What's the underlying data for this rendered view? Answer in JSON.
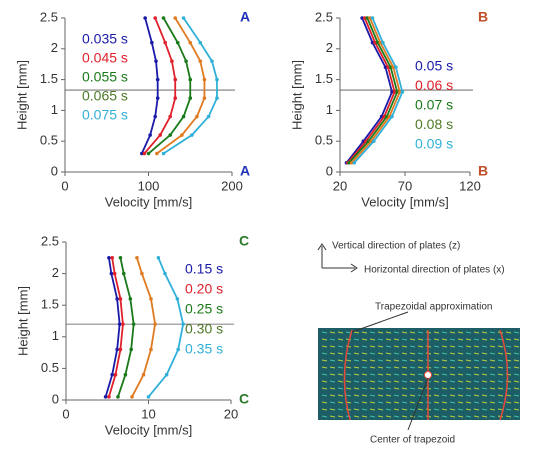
{
  "chart_data": [
    {
      "type": "line",
      "x_label": "Velocity [mm/s]",
      "y_label": "Height [mm]",
      "corner_label": "A",
      "corner_color": "#2233bb",
      "xlim": [
        0,
        200
      ],
      "xticks": [
        0,
        100,
        200
      ],
      "ylim": [
        0,
        2.5
      ],
      "yticks": [
        0,
        0.5,
        1,
        1.5,
        2,
        2.5
      ],
      "hline": 1.33,
      "series": [
        {
          "name": "0.035 s",
          "color": "#1a1aa8",
          "label_color": "#1a1aa8",
          "values": [
            0.3,
            0.6,
            0.9,
            1.2,
            1.5,
            1.8,
            2.1,
            2.5
          ],
          "x": [
            92,
            102,
            108,
            111,
            111,
            109,
            104,
            96
          ]
        },
        {
          "name": "0.045 s",
          "color": "#e0202a",
          "label_color": "#e0202a",
          "values": [
            0.3,
            0.6,
            0.9,
            1.2,
            1.5,
            1.8,
            2.1,
            2.5
          ],
          "x": [
            95,
            114,
            126,
            132,
            132,
            128,
            120,
            108
          ]
        },
        {
          "name": "0.055 s",
          "color": "#1a7a1a",
          "label_color": "#1a7a1a",
          "values": [
            0.3,
            0.6,
            0.9,
            1.2,
            1.5,
            1.8,
            2.1,
            2.5
          ],
          "x": [
            100,
            126,
            142,
            150,
            150,
            145,
            135,
            118
          ]
        },
        {
          "name": "0.065 s",
          "color": "#e07a20",
          "label_color": "#4f7a28",
          "values": [
            0.3,
            0.6,
            0.9,
            1.2,
            1.5,
            1.8,
            2.1,
            2.5
          ],
          "x": [
            110,
            140,
            158,
            167,
            167,
            162,
            150,
            132
          ]
        },
        {
          "name": "0.075 s",
          "color": "#30b0d8",
          "label_color": "#30b0d8",
          "values": [
            0.3,
            0.6,
            0.9,
            1.2,
            1.5,
            1.8,
            2.1,
            2.5
          ],
          "x": [
            118,
            152,
            172,
            182,
            182,
            176,
            162,
            142
          ]
        }
      ]
    },
    {
      "type": "line",
      "x_label": "Velocity [mm/s]",
      "y_label": "Height [mm]",
      "corner_label": "B",
      "corner_color": "#c0502a",
      "xlim": [
        20,
        120
      ],
      "xticks": [
        20,
        70,
        120
      ],
      "ylim": [
        0,
        2.5
      ],
      "yticks": [
        0,
        0.5,
        1,
        1.5,
        2,
        2.5
      ],
      "hline": 1.33,
      "series": [
        {
          "name": "0.05 s",
          "color": "#1a1aa8",
          "label_color": "#1a1aa8",
          "values": [
            0.15,
            0.5,
            0.9,
            1.3,
            1.7,
            2.1,
            2.5
          ],
          "x": [
            25,
            38,
            52,
            60,
            55,
            45,
            37
          ]
        },
        {
          "name": "0.06 s",
          "color": "#e0202a",
          "label_color": "#e0202a",
          "values": [
            0.15,
            0.5,
            0.9,
            1.3,
            1.7,
            2.1,
            2.5
          ],
          "x": [
            26,
            40,
            54,
            62,
            57,
            47,
            39
          ]
        },
        {
          "name": "0.07 s",
          "color": "#1a7a1a",
          "label_color": "#1a7a1a",
          "values": [
            0.15,
            0.5,
            0.9,
            1.3,
            1.7,
            2.1,
            2.5
          ],
          "x": [
            27,
            42,
            56,
            64,
            59,
            49,
            41
          ]
        },
        {
          "name": "0.08 s",
          "color": "#e07a20",
          "label_color": "#4f7a28",
          "values": [
            0.15,
            0.5,
            0.9,
            1.3,
            1.7,
            2.1,
            2.5
          ],
          "x": [
            29,
            44,
            58,
            66,
            61,
            51,
            43
          ]
        },
        {
          "name": "0.09 s",
          "color": "#30b0d8",
          "label_color": "#30b0d8",
          "values": [
            0.15,
            0.5,
            0.9,
            1.3,
            1.7,
            2.1,
            2.5
          ],
          "x": [
            31,
            46,
            60,
            68,
            63,
            53,
            45
          ]
        }
      ]
    },
    {
      "type": "line",
      "x_label": "Velocity [mm/s]",
      "y_label": "Height [mm]",
      "corner_label": "C",
      "corner_color": "#2a7a2a",
      "xlim": [
        0,
        20
      ],
      "xticks": [
        0,
        10,
        20
      ],
      "ylim": [
        0,
        2.5
      ],
      "yticks": [
        0,
        0.5,
        1,
        1.5,
        2,
        2.5
      ],
      "hline": 1.2,
      "series": [
        {
          "name": "0.15 s",
          "color": "#1a1aa8",
          "label_color": "#1a1aa8",
          "values": [
            0.05,
            0.4,
            0.8,
            1.2,
            1.6,
            2.0,
            2.25
          ],
          "x": [
            4.8,
            5.6,
            6.2,
            6.5,
            6.2,
            5.5,
            5.2
          ]
        },
        {
          "name": "0.20 s",
          "color": "#e0202a",
          "label_color": "#e0202a",
          "values": [
            0.05,
            0.4,
            0.8,
            1.2,
            1.6,
            2.0,
            2.25
          ],
          "x": [
            5.2,
            6.0,
            6.6,
            6.9,
            6.6,
            5.9,
            5.6
          ]
        },
        {
          "name": "0.25 s",
          "color": "#1a7a1a",
          "label_color": "#1a7a1a",
          "values": [
            0.05,
            0.4,
            0.8,
            1.2,
            1.6,
            2.0,
            2.25
          ],
          "x": [
            6.3,
            7.2,
            7.9,
            8.2,
            7.8,
            7.0,
            6.6
          ]
        },
        {
          "name": "0.30 s",
          "color": "#e07a20",
          "label_color": "#4f7a28",
          "values": [
            0.05,
            0.4,
            0.8,
            1.2,
            1.6,
            2.0,
            2.25
          ],
          "x": [
            8.0,
            9.4,
            10.3,
            10.8,
            10.3,
            9.2,
            8.6
          ]
        },
        {
          "name": "0.35 s",
          "color": "#30b0d8",
          "label_color": "#30b0d8",
          "values": [
            0.05,
            0.4,
            0.8,
            1.2,
            1.6,
            2.0,
            2.25
          ],
          "x": [
            10.0,
            12.2,
            13.6,
            14.2,
            13.5,
            12.0,
            11.2
          ]
        }
      ]
    }
  ],
  "diagram": {
    "vertical_label": "Vertical direction of plates (z)",
    "horizontal_label": "Horizontal direction of plates (x)",
    "trapezoid_label": "Trapezoidal approximation",
    "center_label": "Center of trapezoid"
  }
}
